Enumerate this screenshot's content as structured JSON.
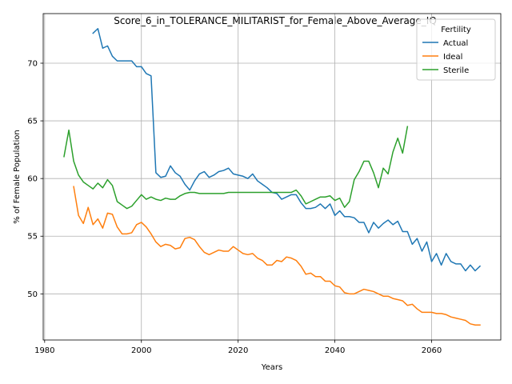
{
  "chart_data": {
    "type": "line",
    "title": "Score_6_in_TOLERANCE_MILITARIST_for_Female_Above_Average_IQ",
    "xlabel": "Years",
    "ylabel": "% of Female Population",
    "xlim": [
      1979.7,
      2074.3
    ],
    "ylim": [
      46.0,
      74.3
    ],
    "xticks": [
      1980,
      2000,
      2020,
      2040,
      2060
    ],
    "yticks": [
      50,
      55,
      60,
      65,
      70
    ],
    "grid": true,
    "legend": {
      "title": "Fertility",
      "placement": "top-right"
    },
    "series": [
      {
        "name": "Actual",
        "color": "#1f77b4",
        "points": [
          [
            1990,
            72.6
          ],
          [
            1991,
            73.0
          ],
          [
            1992,
            71.3
          ],
          [
            1993,
            71.5
          ],
          [
            1994,
            70.6
          ],
          [
            1995,
            70.2
          ],
          [
            1996,
            70.2
          ],
          [
            1997,
            70.2
          ],
          [
            1998,
            70.2
          ],
          [
            1999,
            69.7
          ],
          [
            2000,
            69.7
          ],
          [
            2001,
            69.1
          ],
          [
            2002,
            68.9
          ],
          [
            2003,
            60.5
          ],
          [
            2004,
            60.1
          ],
          [
            2005,
            60.2
          ],
          [
            2006,
            61.1
          ],
          [
            2007,
            60.5
          ],
          [
            2008,
            60.2
          ],
          [
            2009,
            59.5
          ],
          [
            2010,
            59.0
          ],
          [
            2011,
            59.8
          ],
          [
            2012,
            60.4
          ],
          [
            2013,
            60.6
          ],
          [
            2014,
            60.1
          ],
          [
            2015,
            60.3
          ],
          [
            2016,
            60.6
          ],
          [
            2017,
            60.7
          ],
          [
            2018,
            60.9
          ],
          [
            2019,
            60.4
          ],
          [
            2020,
            60.3
          ],
          [
            2021,
            60.2
          ],
          [
            2022,
            60.0
          ],
          [
            2023,
            60.4
          ],
          [
            2024,
            59.8
          ],
          [
            2025,
            59.5
          ],
          [
            2026,
            59.2
          ],
          [
            2027,
            58.8
          ],
          [
            2028,
            58.7
          ],
          [
            2029,
            58.2
          ],
          [
            2030,
            58.4
          ],
          [
            2031,
            58.6
          ],
          [
            2032,
            58.6
          ],
          [
            2033,
            57.9
          ],
          [
            2034,
            57.4
          ],
          [
            2035,
            57.4
          ],
          [
            2036,
            57.5
          ],
          [
            2037,
            57.8
          ],
          [
            2038,
            57.4
          ],
          [
            2039,
            57.8
          ],
          [
            2040,
            56.8
          ],
          [
            2041,
            57.2
          ],
          [
            2042,
            56.7
          ],
          [
            2043,
            56.7
          ],
          [
            2044,
            56.6
          ],
          [
            2045,
            56.2
          ],
          [
            2046,
            56.2
          ],
          [
            2047,
            55.3
          ],
          [
            2048,
            56.2
          ],
          [
            2049,
            55.7
          ],
          [
            2050,
            56.1
          ],
          [
            2051,
            56.4
          ],
          [
            2052,
            56.0
          ],
          [
            2053,
            56.3
          ],
          [
            2054,
            55.4
          ],
          [
            2055,
            55.4
          ],
          [
            2056,
            54.3
          ],
          [
            2057,
            54.8
          ],
          [
            2058,
            53.7
          ],
          [
            2059,
            54.5
          ],
          [
            2060,
            52.8
          ],
          [
            2061,
            53.5
          ],
          [
            2062,
            52.5
          ],
          [
            2063,
            53.5
          ],
          [
            2064,
            52.8
          ],
          [
            2065,
            52.6
          ],
          [
            2066,
            52.6
          ],
          [
            2067,
            52.0
          ],
          [
            2068,
            52.5
          ],
          [
            2069,
            52.0
          ],
          [
            2070,
            52.4
          ]
        ]
      },
      {
        "name": "Ideal",
        "color": "#ff7f0e",
        "points": [
          [
            1986,
            59.3
          ],
          [
            1987,
            56.8
          ],
          [
            1988,
            56.1
          ],
          [
            1989,
            57.5
          ],
          [
            1990,
            56.0
          ],
          [
            1991,
            56.5
          ],
          [
            1992,
            55.7
          ],
          [
            1993,
            57.0
          ],
          [
            1994,
            56.9
          ],
          [
            1995,
            55.8
          ],
          [
            1996,
            55.2
          ],
          [
            1997,
            55.2
          ],
          [
            1998,
            55.3
          ],
          [
            1999,
            56.0
          ],
          [
            2000,
            56.2
          ],
          [
            2001,
            55.8
          ],
          [
            2002,
            55.2
          ],
          [
            2003,
            54.5
          ],
          [
            2004,
            54.1
          ],
          [
            2005,
            54.3
          ],
          [
            2006,
            54.2
          ],
          [
            2007,
            53.9
          ],
          [
            2008,
            54.0
          ],
          [
            2009,
            54.8
          ],
          [
            2010,
            54.9
          ],
          [
            2011,
            54.7
          ],
          [
            2012,
            54.1
          ],
          [
            2013,
            53.6
          ],
          [
            2014,
            53.4
          ],
          [
            2015,
            53.6
          ],
          [
            2016,
            53.8
          ],
          [
            2017,
            53.7
          ],
          [
            2018,
            53.7
          ],
          [
            2019,
            54.1
          ],
          [
            2020,
            53.8
          ],
          [
            2021,
            53.5
          ],
          [
            2022,
            53.4
          ],
          [
            2023,
            53.5
          ],
          [
            2024,
            53.1
          ],
          [
            2025,
            52.9
          ],
          [
            2026,
            52.5
          ],
          [
            2027,
            52.5
          ],
          [
            2028,
            52.9
          ],
          [
            2029,
            52.8
          ],
          [
            2030,
            53.2
          ],
          [
            2031,
            53.1
          ],
          [
            2032,
            52.9
          ],
          [
            2033,
            52.4
          ],
          [
            2034,
            51.7
          ],
          [
            2035,
            51.8
          ],
          [
            2036,
            51.5
          ],
          [
            2037,
            51.5
          ],
          [
            2038,
            51.1
          ],
          [
            2039,
            51.1
          ],
          [
            2040,
            50.7
          ],
          [
            2041,
            50.6
          ],
          [
            2042,
            50.1
          ],
          [
            2043,
            50.0
          ],
          [
            2044,
            50.0
          ],
          [
            2045,
            50.2
          ],
          [
            2046,
            50.4
          ],
          [
            2047,
            50.3
          ],
          [
            2048,
            50.2
          ],
          [
            2049,
            50.0
          ],
          [
            2050,
            49.8
          ],
          [
            2051,
            49.8
          ],
          [
            2052,
            49.6
          ],
          [
            2053,
            49.5
          ],
          [
            2054,
            49.4
          ],
          [
            2055,
            49.0
          ],
          [
            2056,
            49.1
          ],
          [
            2057,
            48.7
          ],
          [
            2058,
            48.4
          ],
          [
            2059,
            48.4
          ],
          [
            2060,
            48.4
          ],
          [
            2061,
            48.3
          ],
          [
            2062,
            48.3
          ],
          [
            2063,
            48.2
          ],
          [
            2064,
            48.0
          ],
          [
            2065,
            47.9
          ],
          [
            2066,
            47.8
          ],
          [
            2067,
            47.7
          ],
          [
            2068,
            47.4
          ],
          [
            2069,
            47.3
          ],
          [
            2070,
            47.3
          ]
        ]
      },
      {
        "name": "Sterile",
        "color": "#2ca02c",
        "points": [
          [
            1984,
            61.9
          ],
          [
            1985,
            64.2
          ],
          [
            1986,
            61.5
          ],
          [
            1987,
            60.3
          ],
          [
            1988,
            59.7
          ],
          [
            1989,
            59.4
          ],
          [
            1990,
            59.1
          ],
          [
            1991,
            59.6
          ],
          [
            1992,
            59.2
          ],
          [
            1993,
            59.9
          ],
          [
            1994,
            59.4
          ],
          [
            1995,
            58.0
          ],
          [
            1996,
            57.7
          ],
          [
            1997,
            57.4
          ],
          [
            1998,
            57.6
          ],
          [
            1999,
            58.1
          ],
          [
            2000,
            58.6
          ],
          [
            2001,
            58.2
          ],
          [
            2002,
            58.4
          ],
          [
            2003,
            58.2
          ],
          [
            2004,
            58.1
          ],
          [
            2005,
            58.3
          ],
          [
            2006,
            58.2
          ],
          [
            2007,
            58.2
          ],
          [
            2008,
            58.5
          ],
          [
            2009,
            58.7
          ],
          [
            2010,
            58.8
          ],
          [
            2011,
            58.8
          ],
          [
            2012,
            58.7
          ],
          [
            2013,
            58.7
          ],
          [
            2014,
            58.7
          ],
          [
            2015,
            58.7
          ],
          [
            2016,
            58.7
          ],
          [
            2017,
            58.7
          ],
          [
            2018,
            58.8
          ],
          [
            2019,
            58.8
          ],
          [
            2020,
            58.8
          ],
          [
            2021,
            58.8
          ],
          [
            2022,
            58.8
          ],
          [
            2023,
            58.8
          ],
          [
            2024,
            58.8
          ],
          [
            2025,
            58.8
          ],
          [
            2026,
            58.8
          ],
          [
            2027,
            58.8
          ],
          [
            2028,
            58.8
          ],
          [
            2029,
            58.8
          ],
          [
            2030,
            58.8
          ],
          [
            2031,
            58.8
          ],
          [
            2032,
            59.0
          ],
          [
            2033,
            58.5
          ],
          [
            2034,
            57.8
          ],
          [
            2035,
            58.0
          ],
          [
            2036,
            58.2
          ],
          [
            2037,
            58.4
          ],
          [
            2038,
            58.4
          ],
          [
            2039,
            58.5
          ],
          [
            2040,
            58.1
          ],
          [
            2041,
            58.3
          ],
          [
            2042,
            57.5
          ],
          [
            2043,
            58.0
          ],
          [
            2044,
            59.9
          ],
          [
            2045,
            60.6
          ],
          [
            2046,
            61.5
          ],
          [
            2047,
            61.5
          ],
          [
            2048,
            60.5
          ],
          [
            2049,
            59.2
          ],
          [
            2050,
            60.9
          ],
          [
            2051,
            60.4
          ],
          [
            2052,
            62.3
          ],
          [
            2053,
            63.5
          ],
          [
            2054,
            62.2
          ],
          [
            2055,
            64.5
          ]
        ]
      }
    ]
  }
}
